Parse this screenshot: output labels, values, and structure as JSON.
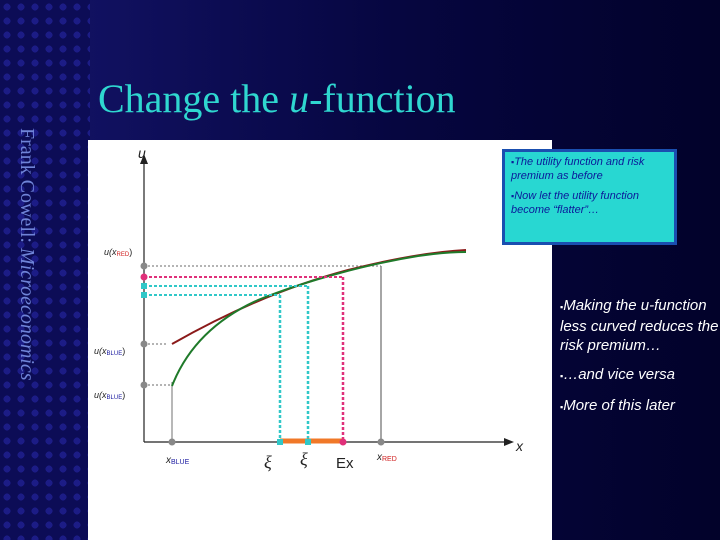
{
  "slide": {
    "author_name": "Frank Cowell:",
    "author_subject": "Microeconomics",
    "title_before": "Change the ",
    "title_var": "u",
    "title_after": "-function"
  },
  "diagram": {
    "axis_y_label": "u",
    "axis_x_label": "x",
    "u_of": "u(x",
    "sub_red": "RED",
    "sub_blue": "BLUE",
    "close_paren": ")",
    "x_blue_base": "x",
    "x_red_base": "x",
    "xi_symbol": "ξ",
    "ex_label": "Ex",
    "colors": {
      "old_curve": "#1f7a2a",
      "new_curve": "#8b1a1a",
      "expected_utility": "#e0307a",
      "certainty_eq_old": "#30c8c8",
      "risk_premium_bar": "#f07828",
      "gray": "#888888",
      "red_subscript": "#d02020",
      "blue_subscript": "#1a1aa0"
    }
  },
  "callout": {
    "bullet": "▪",
    "line1": "The utility function and risk premium as before",
    "line2": "Now let the utility function become “flatter”…"
  },
  "notes": {
    "bullet": "▪",
    "item1": "Making the u-function less curved reduces the risk premium…",
    "item2": "…and vice versa",
    "item3": "More of this later"
  }
}
